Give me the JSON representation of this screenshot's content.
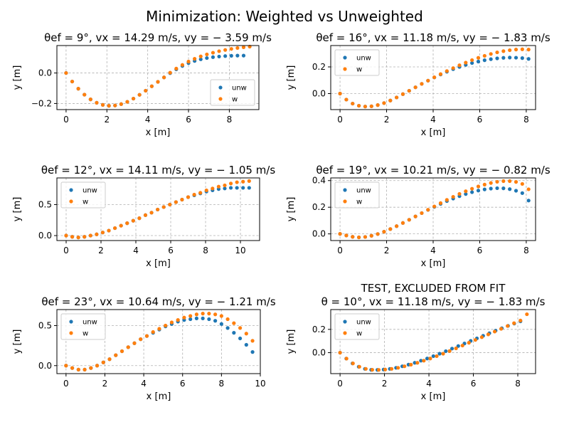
{
  "figure": {
    "suptitle": "Minimization: Weighted vs Unweighted"
  },
  "legend_labels": [
    "unw",
    "w"
  ],
  "colors": {
    "unw": "#1f77b4",
    "w": "#ff7f0e",
    "grid": "#b0b0b0"
  },
  "chart_data": [
    {
      "type": "scatter",
      "title_lines": [
        "θef = 9°, vx = 14.29 m/s, vy = − 3.59 m/s"
      ],
      "xlabel": "x [m]",
      "ylabel": "y [m]",
      "xlim": [
        -0.45,
        9.45
      ],
      "ylim": [
        -0.24,
        0.18
      ],
      "xticks": [
        0,
        2,
        4,
        6,
        8
      ],
      "xtick_labels": [
        "0",
        "2",
        "4",
        "6",
        "8"
      ],
      "yticks": [
        -0.2,
        0.0
      ],
      "ytick_labels": [
        "−0.2",
        "0.0"
      ],
      "grid": true,
      "legend_placement": "lower-right",
      "series": [
        {
          "name": "unw",
          "x": [
            0,
            0.3,
            0.6,
            0.9,
            1.2,
            1.5,
            1.8,
            2.1,
            2.4,
            2.7,
            3.0,
            3.3,
            3.6,
            3.9,
            4.2,
            4.5,
            4.8,
            5.1,
            5.4,
            5.7,
            6.0,
            6.3,
            6.6,
            6.9,
            7.2,
            7.5,
            7.8,
            8.1,
            8.4,
            8.7
          ],
          "y": [
            0.0,
            -0.056,
            -0.103,
            -0.142,
            -0.173,
            -0.195,
            -0.209,
            -0.215,
            -0.213,
            -0.204,
            -0.189,
            -0.168,
            -0.143,
            -0.116,
            -0.087,
            -0.058,
            -0.029,
            -0.001,
            0.024,
            0.046,
            0.065,
            0.079,
            0.09,
            0.098,
            0.104,
            0.108,
            0.111,
            0.113,
            0.114,
            0.114
          ]
        },
        {
          "name": "w",
          "x": [
            0,
            0.3,
            0.6,
            0.9,
            1.2,
            1.5,
            1.8,
            2.1,
            2.4,
            2.7,
            3.0,
            3.3,
            3.6,
            3.9,
            4.2,
            4.5,
            4.8,
            5.1,
            5.4,
            5.7,
            6.0,
            6.3,
            6.6,
            6.9,
            7.2,
            7.5,
            7.8,
            8.1,
            8.4,
            8.7,
            9.0
          ],
          "y": [
            0.0,
            -0.056,
            -0.103,
            -0.142,
            -0.173,
            -0.195,
            -0.209,
            -0.215,
            -0.213,
            -0.204,
            -0.189,
            -0.168,
            -0.143,
            -0.116,
            -0.087,
            -0.058,
            -0.029,
            0.002,
            0.029,
            0.053,
            0.075,
            0.093,
            0.109,
            0.122,
            0.133,
            0.143,
            0.151,
            0.158,
            0.164,
            0.169,
            0.173
          ]
        }
      ]
    },
    {
      "type": "scatter",
      "title_lines": [
        "θef = 16°, vx = 11.18 m/s, vy = − 1.83 m/s"
      ],
      "xlabel": "x [m]",
      "ylabel": "y [m]",
      "xlim": [
        -0.4,
        8.4
      ],
      "ylim": [
        -0.12,
        0.36
      ],
      "xticks": [
        0,
        2,
        4,
        6,
        8
      ],
      "xtick_labels": [
        "0",
        "2",
        "4",
        "6",
        "8"
      ],
      "yticks": [
        0.0,
        0.2
      ],
      "ytick_labels": [
        "0.0",
        "0.2"
      ],
      "grid": true,
      "legend_placement": "upper-left",
      "series": [
        {
          "name": "unw",
          "x": [
            0,
            0.27,
            0.54,
            0.81,
            1.08,
            1.35,
            1.62,
            1.89,
            2.16,
            2.43,
            2.7,
            2.97,
            3.24,
            3.51,
            3.78,
            4.05,
            4.32,
            4.59,
            4.86,
            5.13,
            5.4,
            5.67,
            5.94,
            6.21,
            6.48,
            6.75,
            7.02,
            7.29,
            7.56,
            7.83,
            8.1
          ],
          "y": [
            0.0,
            -0.045,
            -0.075,
            -0.091,
            -0.097,
            -0.095,
            -0.086,
            -0.071,
            -0.052,
            -0.029,
            -0.004,
            0.021,
            0.047,
            0.073,
            0.097,
            0.121,
            0.143,
            0.164,
            0.183,
            0.2,
            0.215,
            0.229,
            0.24,
            0.25,
            0.258,
            0.264,
            0.268,
            0.27,
            0.269,
            0.266,
            0.26
          ]
        },
        {
          "name": "w",
          "x": [
            0,
            0.27,
            0.54,
            0.81,
            1.08,
            1.35,
            1.62,
            1.89,
            2.16,
            2.43,
            2.7,
            2.97,
            3.24,
            3.51,
            3.78,
            4.05,
            4.32,
            4.59,
            4.86,
            5.13,
            5.4,
            5.67,
            5.94,
            6.21,
            6.48,
            6.75,
            7.02,
            7.29,
            7.56,
            7.83,
            8.1
          ],
          "y": [
            0.0,
            -0.045,
            -0.075,
            -0.091,
            -0.097,
            -0.095,
            -0.086,
            -0.071,
            -0.052,
            -0.029,
            -0.004,
            0.021,
            0.047,
            0.073,
            0.097,
            0.122,
            0.146,
            0.169,
            0.191,
            0.212,
            0.232,
            0.251,
            0.268,
            0.283,
            0.297,
            0.309,
            0.318,
            0.325,
            0.33,
            0.332,
            0.33
          ]
        }
      ]
    },
    {
      "type": "scatter",
      "title_lines": [
        "θef = 12°, vx = 14.11 m/s, vy = − 1.05 m/s"
      ],
      "xlabel": "x [m]",
      "ylabel": "y [m]",
      "xlim": [
        -0.53,
        11.1
      ],
      "ylim": [
        -0.08,
        0.93
      ],
      "xticks": [
        0,
        2,
        4,
        6,
        8,
        10
      ],
      "xtick_labels": [
        "0",
        "2",
        "4",
        "6",
        "8",
        "10"
      ],
      "yticks": [
        0.0,
        0.5
      ],
      "ytick_labels": [
        "0.0",
        "0.5"
      ],
      "grid": true,
      "legend_placement": "upper-left",
      "series": [
        {
          "name": "unw",
          "x": [
            0,
            0.35,
            0.7,
            1.05,
            1.4,
            1.75,
            2.1,
            2.45,
            2.8,
            3.15,
            3.5,
            3.85,
            4.2,
            4.55,
            4.9,
            5.25,
            5.6,
            5.95,
            6.3,
            6.65,
            7.0,
            7.35,
            7.7,
            8.05,
            8.4,
            8.75,
            9.1,
            9.45,
            9.8,
            10.15,
            10.5
          ],
          "y": [
            0.0,
            -0.02,
            -0.03,
            -0.02,
            0.0,
            0.02,
            0.05,
            0.08,
            0.12,
            0.16,
            0.2,
            0.24,
            0.28,
            0.33,
            0.37,
            0.42,
            0.46,
            0.5,
            0.54,
            0.58,
            0.62,
            0.65,
            0.68,
            0.71,
            0.73,
            0.75,
            0.76,
            0.77,
            0.77,
            0.77,
            0.77
          ]
        },
        {
          "name": "w",
          "x": [
            0,
            0.35,
            0.7,
            1.05,
            1.4,
            1.75,
            2.1,
            2.45,
            2.8,
            3.15,
            3.5,
            3.85,
            4.2,
            4.55,
            4.9,
            5.25,
            5.6,
            5.95,
            6.3,
            6.65,
            7.0,
            7.35,
            7.7,
            8.05,
            8.4,
            8.75,
            9.1,
            9.45,
            9.8,
            10.15,
            10.5
          ],
          "y": [
            0.0,
            -0.02,
            -0.03,
            -0.02,
            0.0,
            0.02,
            0.05,
            0.08,
            0.12,
            0.16,
            0.2,
            0.24,
            0.28,
            0.33,
            0.37,
            0.42,
            0.46,
            0.5,
            0.54,
            0.58,
            0.62,
            0.66,
            0.69,
            0.73,
            0.76,
            0.79,
            0.81,
            0.84,
            0.86,
            0.87,
            0.88
          ]
        }
      ]
    },
    {
      "type": "scatter",
      "title_lines": [
        "θef = 19°, vx = 10.21 m/s, vy = − 0.82 m/s"
      ],
      "xlabel": "x [m]",
      "ylabel": "y [m]",
      "xlim": [
        -0.4,
        8.4
      ],
      "ylim": [
        -0.05,
        0.42
      ],
      "xticks": [
        0,
        2,
        4,
        6,
        8
      ],
      "xtick_labels": [
        "0",
        "2",
        "4",
        "6",
        "8"
      ],
      "yticks": [
        0.0,
        0.2,
        0.4
      ],
      "ytick_labels": [
        "0.0",
        "0.2",
        "0.4"
      ],
      "grid": true,
      "legend_placement": "upper-left",
      "series": [
        {
          "name": "unw",
          "x": [
            0,
            0.27,
            0.54,
            0.81,
            1.08,
            1.35,
            1.62,
            1.89,
            2.16,
            2.43,
            2.7,
            2.97,
            3.24,
            3.51,
            3.78,
            4.05,
            4.32,
            4.59,
            4.86,
            5.13,
            5.4,
            5.67,
            5.94,
            6.21,
            6.48,
            6.75,
            7.02,
            7.29,
            7.56,
            7.83,
            8.1
          ],
          "y": [
            0.0,
            -0.012,
            -0.022,
            -0.026,
            -0.023,
            -0.014,
            -0.001,
            0.016,
            0.036,
            0.058,
            0.082,
            0.106,
            0.131,
            0.156,
            0.18,
            0.203,
            0.225,
            0.246,
            0.265,
            0.283,
            0.299,
            0.313,
            0.325,
            0.334,
            0.34,
            0.343,
            0.342,
            0.336,
            0.324,
            0.306,
            0.25
          ]
        },
        {
          "name": "w",
          "x": [
            0,
            0.27,
            0.54,
            0.81,
            1.08,
            1.35,
            1.62,
            1.89,
            2.16,
            2.43,
            2.7,
            2.97,
            3.24,
            3.51,
            3.78,
            4.05,
            4.32,
            4.59,
            4.86,
            5.13,
            5.4,
            5.67,
            5.94,
            6.21,
            6.48,
            6.75,
            7.02,
            7.29,
            7.56,
            7.83,
            8.1
          ],
          "y": [
            0.0,
            -0.012,
            -0.022,
            -0.026,
            -0.023,
            -0.014,
            -0.001,
            0.016,
            0.036,
            0.058,
            0.082,
            0.106,
            0.131,
            0.156,
            0.181,
            0.206,
            0.231,
            0.255,
            0.278,
            0.3,
            0.32,
            0.339,
            0.356,
            0.37,
            0.382,
            0.391,
            0.396,
            0.396,
            0.39,
            0.375,
            0.335
          ]
        }
      ]
    },
    {
      "type": "scatter",
      "title_lines": [
        "θef = 23°, vx = 10.64 m/s, vy = − 1.21 m/s"
      ],
      "xlabel": "x [m]",
      "ylabel": "y [m]",
      "xlim": [
        -0.47,
        10.0
      ],
      "ylim": [
        -0.1,
        0.7
      ],
      "xticks": [
        0,
        2,
        4,
        6,
        8,
        10
      ],
      "xtick_labels": [
        "0",
        "2",
        "4",
        "6",
        "8",
        "10"
      ],
      "yticks": [
        0.0,
        0.5
      ],
      "ytick_labels": [
        "0.0",
        "0.5"
      ],
      "grid": true,
      "legend_placement": "upper-left",
      "series": [
        {
          "name": "unw",
          "x": [
            0,
            0.32,
            0.64,
            0.96,
            1.28,
            1.6,
            1.92,
            2.24,
            2.56,
            2.88,
            3.2,
            3.52,
            3.84,
            4.16,
            4.48,
            4.8,
            5.12,
            5.44,
            5.76,
            6.08,
            6.4,
            6.72,
            7.04,
            7.36,
            7.68,
            8.0,
            8.32,
            8.64,
            8.96,
            9.28,
            9.6
          ],
          "y": [
            0.0,
            -0.03,
            -0.05,
            -0.05,
            -0.03,
            0.0,
            0.04,
            0.08,
            0.13,
            0.18,
            0.23,
            0.28,
            0.33,
            0.37,
            0.41,
            0.45,
            0.49,
            0.52,
            0.55,
            0.57,
            0.58,
            0.59,
            0.59,
            0.58,
            0.56,
            0.52,
            0.47,
            0.41,
            0.34,
            0.26,
            0.17
          ]
        },
        {
          "name": "w",
          "x": [
            0,
            0.32,
            0.64,
            0.96,
            1.28,
            1.6,
            1.92,
            2.24,
            2.56,
            2.88,
            3.2,
            3.52,
            3.84,
            4.16,
            4.48,
            4.8,
            5.12,
            5.44,
            5.76,
            6.08,
            6.4,
            6.72,
            7.04,
            7.36,
            7.68,
            8.0,
            8.32,
            8.64,
            8.96,
            9.28,
            9.6
          ],
          "y": [
            0.0,
            -0.03,
            -0.05,
            -0.05,
            -0.03,
            0.0,
            0.04,
            0.08,
            0.13,
            0.18,
            0.23,
            0.28,
            0.33,
            0.37,
            0.42,
            0.46,
            0.5,
            0.54,
            0.57,
            0.6,
            0.62,
            0.64,
            0.65,
            0.65,
            0.64,
            0.62,
            0.58,
            0.53,
            0.47,
            0.4,
            0.31
          ]
        }
      ]
    },
    {
      "type": "scatter",
      "title_lines": [
        "TEST, EXCLUDED FROM FIT",
        "θ = 10°, vx = 11.18 m/s, vy = − 1.83 m/s"
      ],
      "xlabel": "x [m]",
      "ylabel": "y [m]",
      "xlim": [
        -0.42,
        8.8
      ],
      "ylim": [
        -0.18,
        0.37
      ],
      "xticks": [
        0,
        2,
        4,
        6,
        8
      ],
      "xtick_labels": [
        "0",
        "2",
        "4",
        "6",
        "8"
      ],
      "yticks": [
        0.0,
        0.2
      ],
      "ytick_labels": [
        "0.0",
        "0.2"
      ],
      "grid": true,
      "legend_placement": "upper-left",
      "series": [
        {
          "name": "unw",
          "x": [
            0,
            0.28,
            0.56,
            0.84,
            1.12,
            1.4,
            1.68,
            1.96,
            2.24,
            2.52,
            2.8,
            3.08,
            3.36,
            3.64,
            3.92,
            4.2,
            4.48,
            4.76,
            5.04,
            5.32,
            5.6,
            5.88,
            6.16,
            6.44,
            6.72,
            7.0,
            7.28,
            7.56,
            7.84,
            8.12
          ],
          "y": [
            0.0,
            -0.051,
            -0.092,
            -0.121,
            -0.139,
            -0.147,
            -0.148,
            -0.145,
            -0.139,
            -0.13,
            -0.117,
            -0.103,
            -0.087,
            -0.069,
            -0.05,
            -0.03,
            -0.009,
            0.013,
            0.035,
            0.057,
            0.079,
            0.101,
            0.123,
            0.145,
            0.167,
            0.189,
            0.21,
            0.23,
            0.25,
            0.269
          ]
        },
        {
          "name": "w",
          "x": [
            0,
            0.29,
            0.58,
            0.87,
            1.16,
            1.45,
            1.74,
            2.03,
            2.32,
            2.61,
            2.9,
            3.19,
            3.48,
            3.77,
            4.06,
            4.35,
            4.64,
            4.93,
            5.22,
            5.51,
            5.8,
            6.09,
            6.38,
            6.67,
            6.96,
            7.25,
            7.54,
            7.83,
            8.12,
            8.41
          ],
          "y": [
            0.0,
            -0.051,
            -0.092,
            -0.121,
            -0.139,
            -0.147,
            -0.148,
            -0.145,
            -0.139,
            -0.13,
            -0.117,
            -0.103,
            -0.087,
            -0.069,
            -0.05,
            -0.03,
            -0.009,
            0.014,
            0.037,
            0.061,
            0.085,
            0.109,
            0.133,
            0.157,
            0.181,
            0.205,
            0.229,
            0.253,
            0.276,
            0.33
          ]
        }
      ]
    }
  ]
}
